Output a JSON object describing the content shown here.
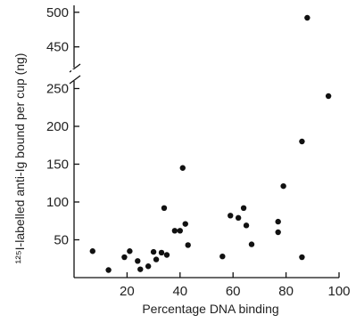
{
  "chart_data": {
    "type": "scatter",
    "title": "",
    "xlabel": "Percentage DNA binding",
    "ylabel": "¹²⁵I-labelled anti-Ig bound per cup (ng)",
    "xlim": [
      0,
      100
    ],
    "x_ticks": [
      20,
      40,
      60,
      80,
      100
    ],
    "x_tick_labels": [
      "20",
      "40",
      "60",
      "80",
      "100"
    ],
    "y_axis_break": true,
    "y_lower_range": [
      0,
      260
    ],
    "y_upper_range": [
      420,
      510
    ],
    "y_ticks": [
      50,
      100,
      150,
      200,
      250,
      450,
      500
    ],
    "y_tick_labels": [
      "50",
      "100",
      "150",
      "200",
      "250",
      "450",
      "500"
    ],
    "grid": false,
    "series": [
      {
        "points": [
          {
            "x": 7,
            "y": 35
          },
          {
            "x": 13,
            "y": 10
          },
          {
            "x": 19,
            "y": 27
          },
          {
            "x": 21,
            "y": 35
          },
          {
            "x": 24,
            "y": 22
          },
          {
            "x": 25,
            "y": 11
          },
          {
            "x": 28,
            "y": 15
          },
          {
            "x": 30,
            "y": 34
          },
          {
            "x": 31,
            "y": 24
          },
          {
            "x": 33,
            "y": 33
          },
          {
            "x": 34,
            "y": 92
          },
          {
            "x": 35,
            "y": 30
          },
          {
            "x": 38,
            "y": 62
          },
          {
            "x": 40,
            "y": 62
          },
          {
            "x": 41,
            "y": 145
          },
          {
            "x": 42,
            "y": 71
          },
          {
            "x": 43,
            "y": 43
          },
          {
            "x": 56,
            "y": 28
          },
          {
            "x": 59,
            "y": 82
          },
          {
            "x": 62,
            "y": 79
          },
          {
            "x": 64,
            "y": 92
          },
          {
            "x": 65,
            "y": 69
          },
          {
            "x": 67,
            "y": 44
          },
          {
            "x": 77,
            "y": 74
          },
          {
            "x": 77,
            "y": 60
          },
          {
            "x": 79,
            "y": 121
          },
          {
            "x": 86,
            "y": 180
          },
          {
            "x": 86,
            "y": 27
          },
          {
            "x": 88,
            "y": 492
          },
          {
            "x": 96,
            "y": 240
          }
        ]
      }
    ]
  }
}
